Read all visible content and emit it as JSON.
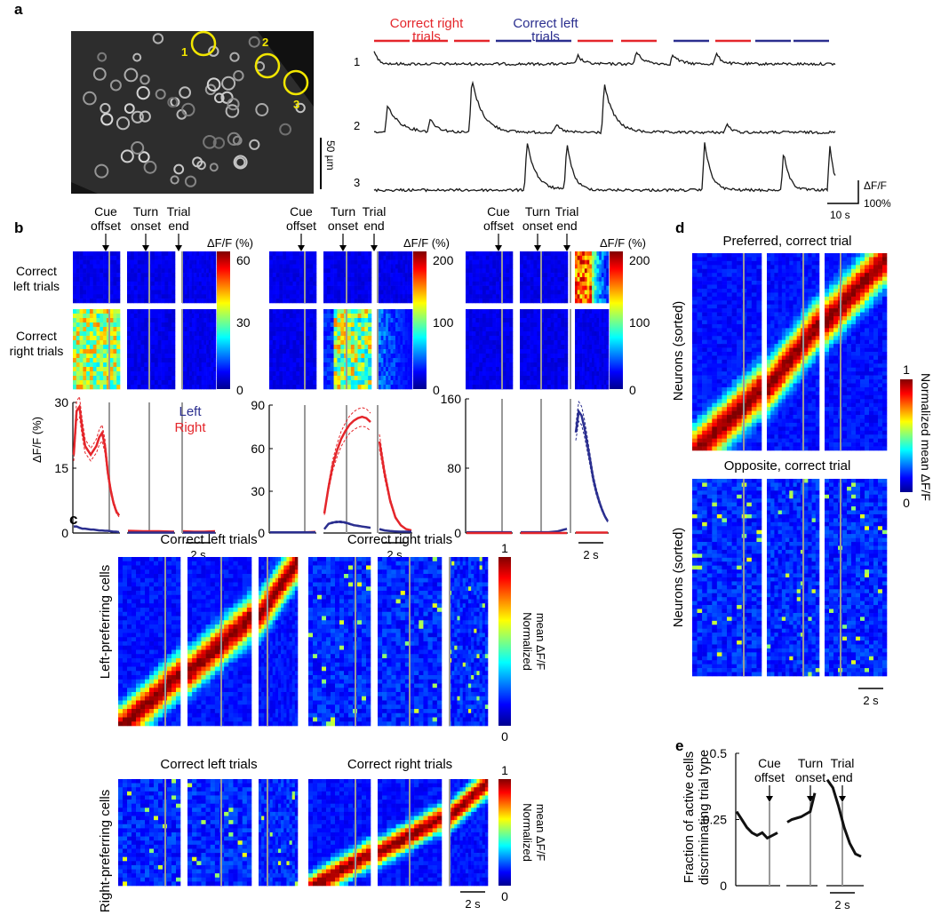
{
  "panels": {
    "a": {
      "letter": "a",
      "cell_ids": [
        "1",
        "2",
        "3"
      ],
      "scale_micro": "50 µm",
      "trial_labels": {
        "right_line1": "Correct right",
        "right_line2": "trials",
        "left_line1": "Correct left",
        "left_line2": "trials"
      },
      "trace_ids": [
        "1",
        "2",
        "3"
      ],
      "scale_dff": "ΔF/F",
      "scale_pct": "100%",
      "scale_time": "10 s",
      "trial_sequence": [
        "right",
        "right",
        "right",
        "left",
        "left",
        "right",
        "right",
        "left",
        "right",
        "left",
        "left"
      ],
      "colors": {
        "right": "#e4262b",
        "left": "#2b2f8f",
        "cells": "#f2e600"
      }
    },
    "b": {
      "letter": "b",
      "events": [
        {
          "line1": "Cue",
          "line2": "offset"
        },
        {
          "line1": "Turn",
          "line2": "onset"
        },
        {
          "line1": "Trial",
          "line2": "end"
        }
      ],
      "row_labels": {
        "left_line1": "Correct",
        "left_line2": "left trials",
        "right_line1": "Correct",
        "right_line2": "right trials"
      },
      "cbar_title": "ΔF/F (%)",
      "cbar_ticks": [
        [
          "60",
          "30",
          "0"
        ],
        [
          "200",
          "100",
          "0"
        ],
        [
          "200",
          "100",
          "0"
        ]
      ],
      "ylabel": "ΔF/F (%)",
      "legend": {
        "left": "Left",
        "right": "Right"
      },
      "yticks": [
        [
          "30",
          "15",
          "0"
        ],
        [
          "90",
          "60",
          "30",
          "0"
        ],
        [
          "160",
          "80",
          "0"
        ]
      ],
      "scalebar": "2 s"
    },
    "c": {
      "letter": "c",
      "col_titles": {
        "left": "Correct left trials",
        "right": "Correct right trials"
      },
      "row_titles": {
        "top": "Left-preferring cells",
        "bottom": "Right-preferring cells"
      },
      "cbar_lines": [
        "Normalized",
        "mean ΔF/F"
      ],
      "cbar_ticks": [
        "1",
        "0"
      ],
      "scalebar": "2 s"
    },
    "d": {
      "letter": "d",
      "titles": {
        "top": "Preferred, correct trial",
        "bottom": "Opposite, correct trial"
      },
      "ylabel": "Neurons (sorted)",
      "cbar_label": "Normalized mean ΔF/F",
      "cbar_ticks": [
        "1",
        "0"
      ],
      "scalebar": "2 s"
    },
    "e": {
      "letter": "e",
      "events": [
        {
          "line1": "Cue",
          "line2": "offset"
        },
        {
          "line1": "Turn",
          "line2": "onset"
        },
        {
          "line1": "Trial",
          "line2": "end"
        }
      ],
      "ylabel_line1": "Fraction of active cells",
      "ylabel_line2": "discriminating trial type",
      "yticks": [
        "0.5",
        "0.25",
        "0"
      ],
      "scalebar": "2 s"
    }
  },
  "chart_data": [
    {
      "type": "line",
      "panel": "b-left",
      "ylim": [
        0,
        30
      ],
      "series": [
        {
          "name": "Right",
          "color": "#e4262b",
          "segments": [
            [
              18,
              28,
              29,
              24,
              20,
              19,
              18,
              19,
              20,
              22,
              23,
              20,
              14,
              10,
              7,
              5,
              4
            ],
            [
              0.5,
              0.4,
              0.4,
              0.3
            ],
            [
              0.4,
              0.3,
              0.3,
              0.4
            ]
          ]
        },
        {
          "name": "Left",
          "color": "#2b2f8f",
          "segments": [
            [
              1.5,
              1.5,
              1.2,
              1,
              1,
              0.9,
              0.8,
              0.8,
              0.7,
              0.6,
              0.6,
              0.5,
              0.5,
              0.4,
              0.3,
              0.3,
              0.2
            ],
            [
              0.1,
              0.1,
              0.1,
              0.1
            ],
            [
              0.1,
              0.1,
              0.1,
              0.1
            ]
          ]
        }
      ]
    },
    {
      "type": "line",
      "panel": "b-middle",
      "ylim": [
        0,
        98
      ],
      "series": [
        {
          "name": "Right",
          "color": "#e4262b",
          "segments": [
            [
              0.5,
              0.5,
              0.5,
              0.5,
              0.5,
              0.6,
              0.8
            ],
            [
              15,
              35,
              52,
              63,
              72,
              78,
              83,
              86,
              88,
              89,
              88,
              85
            ],
            [
              70,
              45,
              25,
              12,
              6,
              3,
              2
            ]
          ]
        },
        {
          "name": "Left",
          "color": "#2b2f8f",
          "segments": [
            [
              0.5,
              0.5,
              0.5,
              0.5,
              0.5,
              0.5,
              0.5
            ],
            [
              3,
              7,
              8,
              8.5,
              8.5,
              8,
              7,
              6,
              5.5,
              5,
              4.5,
              4
            ],
            [
              3,
              2,
              1.5,
              1.2,
              1,
              1,
              1
            ]
          ]
        }
      ]
    },
    {
      "type": "line",
      "panel": "b-right",
      "ylim": [
        0,
        160
      ],
      "series": [
        {
          "name": "Left",
          "color": "#2b2f8f",
          "segments": [
            [
              1,
              1,
              1,
              1,
              1,
              1
            ],
            [
              1,
              1,
              1,
              1,
              2,
              5
            ],
            [
              120,
              145,
              140,
              125,
              105,
              85,
              65,
              50,
              38,
              28,
              20,
              14
            ]
          ]
        },
        {
          "name": "Right",
          "color": "#e4262b",
          "segments": [
            [
              0,
              0,
              0,
              0,
              0,
              0
            ],
            [
              0,
              0,
              0,
              0,
              0,
              0
            ],
            [
              0.5,
              0.5,
              0.5,
              0.5,
              0.5,
              0.5,
              0.5,
              0.5,
              0.5,
              0.5,
              0.5,
              0.5
            ]
          ]
        }
      ]
    },
    {
      "type": "line",
      "panel": "e",
      "ylim": [
        0,
        0.5
      ],
      "series": [
        {
          "name": "",
          "color": "#111111",
          "segments": [
            [
              0.28,
              0.25,
              0.22,
              0.2,
              0.19,
              0.2,
              0.18,
              0.19,
              0.2
            ],
            [
              0.24,
              0.25,
              0.255,
              0.26,
              0.27,
              0.28,
              0.35
            ],
            [
              0.4,
              0.37,
              0.3,
              0.22,
              0.16,
              0.12,
              0.11
            ]
          ]
        }
      ]
    }
  ]
}
